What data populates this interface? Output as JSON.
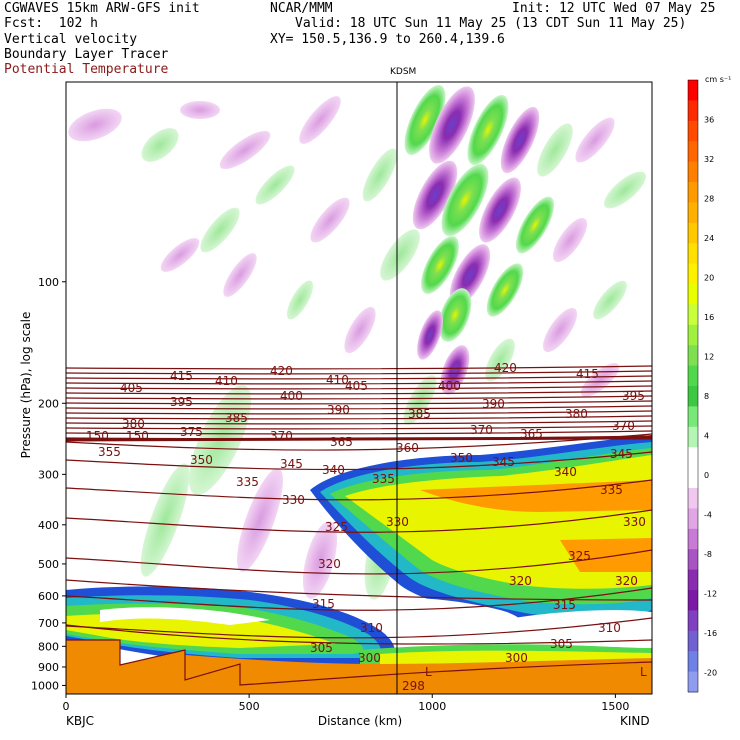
{
  "header": {
    "line1_left": "CGWAVES 15km ARW-GFS init",
    "line1_mid": "NCAR/MMM",
    "line1_right": "Init: 12 UTC Wed 07 May 25",
    "line2_left": "Fcst:  102 h",
    "line2_right": "Valid: 18 UTC Sun 11 May 25 (13 CDT Sun 11 May 25)",
    "line3_left": "Vertical velocity",
    "line3_right": "XY= 150.5,136.9 to 260.4,139.6",
    "line4_left": "Boundary Layer Tracer",
    "line5_left": "Potential Temperature"
  },
  "colors": {
    "theta_line": "#7a1010",
    "pbl_blue": "#1f4fd6",
    "terrain": "#f08a00"
  },
  "chart_data": {
    "type": "heatmap",
    "title": "",
    "xlabel": "Distance (km)",
    "ylabel": "Pressure (hPa), log scale",
    "x_ticks": [
      "0",
      "500",
      "1000",
      "1500"
    ],
    "y_ticks": [
      "100",
      "200",
      "300",
      "400",
      "500",
      "600",
      "700",
      "800",
      "900",
      "1000"
    ],
    "xlim": [
      0,
      1600
    ],
    "y_scale": "log",
    "marker_label": "KDSM",
    "marker_x": 930,
    "left_station": "KBJC",
    "right_station": "KIND",
    "colorbar": {
      "unit": "cm s⁻¹",
      "labels": [
        "36",
        "32",
        "28",
        "24",
        "20",
        "16",
        "12",
        "8",
        "4",
        "0",
        "-4",
        "-8",
        "-12",
        "-16",
        "-20"
      ],
      "colors": [
        "#ff0000",
        "#ff2a00",
        "#ff4a00",
        "#ff6600",
        "#ff8000",
        "#ff9a00",
        "#ffb000",
        "#ffc800",
        "#ffe000",
        "#fff000",
        "#e8ff00",
        "#c8ff3a",
        "#a0f040",
        "#7ee050",
        "#52d84c",
        "#3cc840",
        "#78e878",
        "#b4f4b4",
        "#ffffff",
        "#ffffff",
        "#f0c8f0",
        "#e0a6e6",
        "#c87ad6",
        "#a854c2",
        "#8a2cb0",
        "#7a1aa6",
        "#8040c0",
        "#7060d0",
        "#6f80e6",
        "#8f9cf0"
      ],
      "range": [
        -22,
        40
      ]
    },
    "theta_labels": [
      "420",
      "415",
      "410",
      "405",
      "400",
      "395",
      "390",
      "385",
      "380",
      "375",
      "370",
      "365",
      "360",
      "355",
      "350",
      "345",
      "340",
      "335",
      "330",
      "325",
      "320",
      "315",
      "310",
      "305",
      "300",
      "298",
      "150",
      "L"
    ]
  }
}
